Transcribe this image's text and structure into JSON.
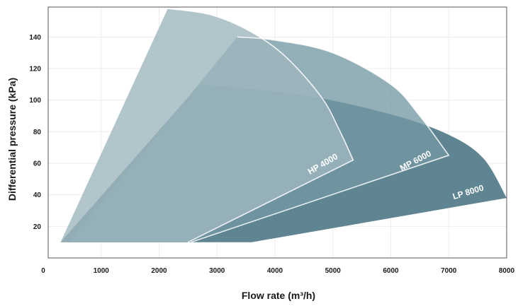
{
  "chart_data": {
    "type": "area",
    "xlabel": "Flow rate (m³/h)",
    "ylabel": "Differential pressure (kPa)",
    "xlim": [
      0,
      8000
    ],
    "ylim": [
      0,
      158
    ],
    "x_ticks": [
      0,
      1000,
      2000,
      3000,
      4000,
      5000,
      6000,
      7000,
      8000
    ],
    "y_ticks": [
      20,
      40,
      60,
      80,
      100,
      120,
      140
    ],
    "grid": true,
    "legend": "none",
    "series": [
      {
        "name": "LP 8000",
        "color": "#5e8591",
        "opacity": 1.0,
        "outline": [
          [
            300,
            10
          ],
          [
            2700,
            110
          ],
          [
            4500,
            103
          ],
          [
            6000,
            91
          ],
          [
            7000,
            78
          ],
          [
            7600,
            63
          ],
          [
            8000,
            38
          ],
          [
            3600,
            10
          ]
        ],
        "inner_curve": [
          [
            2700,
            110
          ],
          [
            4500,
            103
          ],
          [
            6000,
            91
          ],
          [
            7000,
            78
          ],
          [
            7600,
            63
          ],
          [
            8000,
            38
          ]
        ]
      },
      {
        "name": "MP 6000",
        "color": "#7499a4",
        "opacity": 0.78,
        "outline": [
          [
            450,
            10
          ],
          [
            3350,
            140
          ],
          [
            4000,
            138
          ],
          [
            5000,
            130
          ],
          [
            6000,
            110
          ],
          [
            6500,
            90
          ],
          [
            7000,
            65
          ],
          [
            2550,
            10
          ]
        ],
        "inner_curve": [
          [
            3350,
            140
          ],
          [
            4000,
            138
          ],
          [
            5000,
            130
          ],
          [
            6000,
            110
          ],
          [
            6500,
            90
          ],
          [
            7000,
            65
          ]
        ]
      },
      {
        "name": "HP 4000",
        "color": "#9fb6be",
        "opacity": 0.8,
        "outline": [
          [
            300,
            10
          ],
          [
            2150,
            158
          ],
          [
            2900,
            154
          ],
          [
            3600,
            143
          ],
          [
            4200,
            127
          ],
          [
            4800,
            102
          ],
          [
            5100,
            82
          ],
          [
            5350,
            62
          ],
          [
            2500,
            10
          ]
        ],
        "inner_curve": [
          [
            2150,
            158
          ],
          [
            2900,
            154
          ],
          [
            3600,
            143
          ],
          [
            4200,
            127
          ],
          [
            4800,
            102
          ],
          [
            5100,
            82
          ],
          [
            5350,
            62
          ]
        ]
      }
    ],
    "labels": [
      {
        "text": "LP 8000",
        "x": 7350,
        "y": 40,
        "angle": -17
      },
      {
        "text": "MP 6000",
        "x": 6450,
        "y": 60,
        "angle": -28
      },
      {
        "text": "HP 4000",
        "x": 4850,
        "y": 58,
        "angle": -30
      }
    ]
  }
}
